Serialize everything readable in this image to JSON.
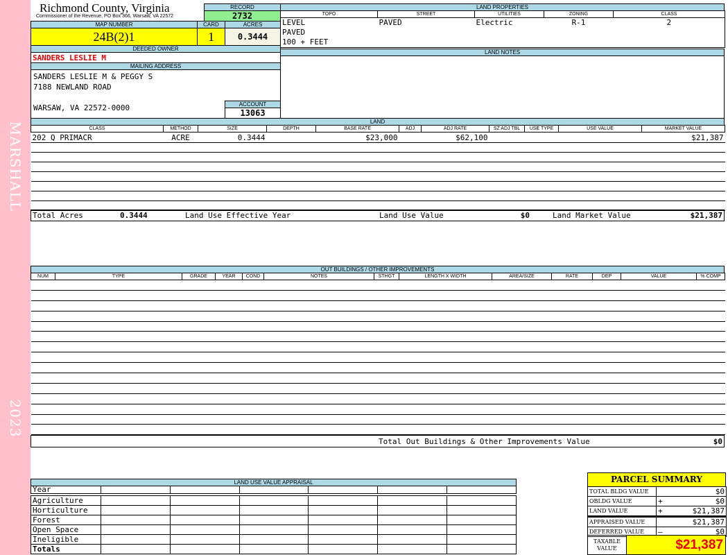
{
  "side": {
    "top_label": "MARSHALL",
    "bottom_label": "2023",
    "color": "#ffc0cb"
  },
  "header": {
    "title": "Richmond County, Virginia",
    "subtitle": "Commissioner of the Revenue, PO Box 366, Warsaw, VA 22572"
  },
  "record": {
    "label": "RECORD",
    "value": "2732"
  },
  "map": {
    "label": "MAP NUMBER",
    "value": "24B(2)1"
  },
  "card": {
    "label": "CARD",
    "value": "1"
  },
  "acres": {
    "label": "ACRES",
    "value": "0.3444"
  },
  "owner": {
    "label": "DEEDED OWNER",
    "value": "SANDERS LESLIE M"
  },
  "mailing": {
    "label": "MAILING ADDRESS",
    "lines": [
      "SANDERS LESLIE M & PEGGY S",
      "7188 NEWLAND ROAD",
      "",
      "WARSAW, VA 22572-0000"
    ]
  },
  "account": {
    "label": "ACCOUNT",
    "value": "13063"
  },
  "land_properties": {
    "label": "LAND PROPERTIES",
    "columns": [
      "TOPO",
      "STREET",
      "UTILITIES",
      "ZONING",
      "CLASS"
    ],
    "topo": [
      "LEVEL",
      "PAVED",
      "100 + FEET"
    ],
    "street": "PAVED",
    "utilities": "Electric",
    "zoning": "R-1",
    "class": "2"
  },
  "land_notes": {
    "label": "LAND NOTES"
  },
  "land": {
    "label": "LAND",
    "columns": [
      "CLASS",
      "METHOD",
      "SIZE",
      "DEPTH",
      "BASE RATE",
      "ADJ",
      "ADJ RATE",
      "SZ ADJ TBL",
      "USE TYPE",
      "USE VALUE",
      "MARKET VALUE"
    ],
    "rows": [
      [
        "202 Q PRIMACR",
        "ACRE",
        "0.3444",
        "",
        "$23,000",
        "",
        "$62,100",
        "",
        "",
        "",
        "$21,387"
      ]
    ],
    "totals": {
      "acres_label": "Total Acres",
      "acres": "0.3444",
      "year_label": "Land Use Effective Year",
      "year": "",
      "use_label": "Land Use Value",
      "use": "$0",
      "market_label": "Land Market Value",
      "market": "$21,387"
    }
  },
  "outbuildings": {
    "label": "OUT BUILDINGS / OTHER IMPROVEMENTS",
    "columns": [
      "NUM",
      "TYPE",
      "GRADE",
      "YEAR",
      "COND",
      "NOTES",
      "STHGT",
      "LENGTH X WIDTH",
      "AREA/SIZE",
      "RATE",
      "DEP",
      "VALUE",
      "% COMP"
    ],
    "total_label": "Total Out Buildings & Other Improvements Value",
    "total": "$0"
  },
  "land_use": {
    "label": "LAND USE VALUE APPRAISAL",
    "year_label": "Year",
    "rows": [
      "Agriculture",
      "Horticulture",
      "Forest",
      "Open Space",
      "Ineligible"
    ],
    "totals_label": "Totals"
  },
  "summary": {
    "title": "PARCEL SUMMARY",
    "rows": [
      {
        "label": "TOTAL BLDG VALUE",
        "op": "",
        "value": "$0"
      },
      {
        "label": "OBLDG VALUE",
        "op": "+",
        "value": "$0"
      },
      {
        "label": "LAND VALUE",
        "op": "+",
        "value": "$21,387"
      },
      {
        "label": "APPRAISED VALUE",
        "op": "",
        "value": "$21,387"
      },
      {
        "label": "DEFERRED VALUE",
        "op": "–",
        "value": "$0"
      }
    ],
    "taxable_label": "TAXABLE VALUE",
    "taxable": "$21,387"
  }
}
